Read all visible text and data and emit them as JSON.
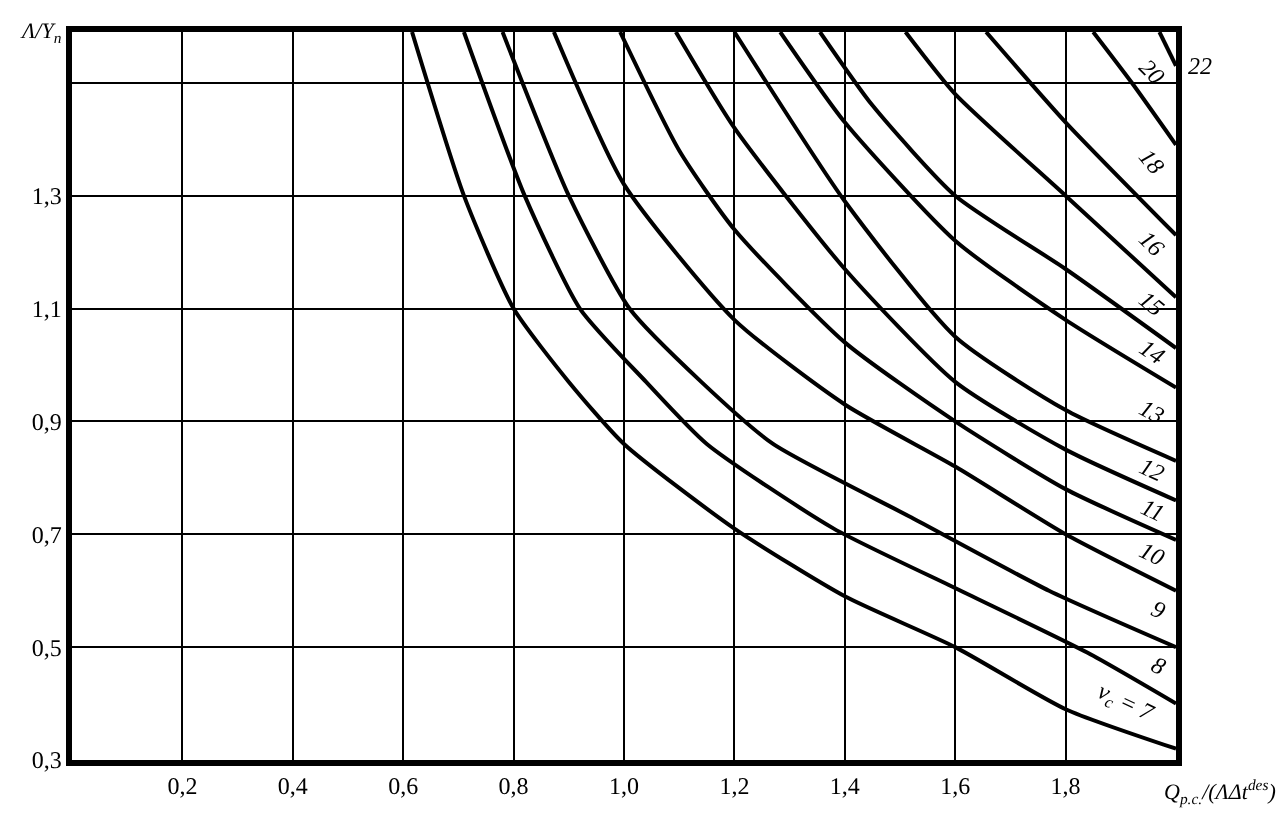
{
  "chart_data": {
    "type": "line",
    "xlabel": "Q$_{p.c.}$/(ΛΔt$^{des}$)",
    "ylabel": "Λ/Y$_{n}$",
    "xlim": [
      0,
      2.0
    ],
    "ylim": [
      0.3,
      1.59
    ],
    "xticks": [
      {
        "value": 0.2,
        "label": "0,2"
      },
      {
        "value": 0.4,
        "label": "0,4"
      },
      {
        "value": 0.6,
        "label": "0,6"
      },
      {
        "value": 0.8,
        "label": "0,8"
      },
      {
        "value": 1.0,
        "label": "1,0"
      },
      {
        "value": 1.2,
        "label": "1,2"
      },
      {
        "value": 1.4,
        "label": "1,4"
      },
      {
        "value": 1.6,
        "label": "1,6"
      },
      {
        "value": 1.8,
        "label": "1,8"
      }
    ],
    "yticks": [
      {
        "value": 0.3,
        "label": "0,3"
      },
      {
        "value": 0.5,
        "label": "0,5"
      },
      {
        "value": 0.7,
        "label": "0,7"
      },
      {
        "value": 0.9,
        "label": "0,9"
      },
      {
        "value": 1.1,
        "label": "1,1"
      },
      {
        "value": 1.3,
        "label": "1,3"
      },
      {
        "value": 1.5,
        "label": null
      }
    ],
    "grid": true,
    "legend": false,
    "line_style": "solid",
    "marker": "none",
    "series": [
      {
        "name": "ν$_{c}$ = 7",
        "color": "#000000",
        "x": [
          0.616,
          0.71,
          0.8,
          0.9,
          1.0,
          1.2,
          1.4,
          1.6,
          1.8,
          2.0
        ],
        "values": [
          1.59,
          1.3,
          1.1,
          0.97,
          0.86,
          0.71,
          0.59,
          0.5,
          0.39,
          0.32
        ]
      },
      {
        "name": "8",
        "color": "#000000",
        "x": [
          0.71,
          0.82,
          0.92,
          1.04,
          1.15,
          1.38,
          1.61,
          1.84,
          2.0
        ],
        "values": [
          1.59,
          1.3,
          1.1,
          0.97,
          0.86,
          0.71,
          0.6,
          0.49,
          0.4
        ]
      },
      {
        "name": "9",
        "color": "#000000",
        "x": [
          0.78,
          0.9,
          1.01,
          1.14,
          1.27,
          1.52,
          1.77,
          2.0
        ],
        "values": [
          1.59,
          1.3,
          1.1,
          0.97,
          0.86,
          0.73,
          0.6,
          0.5
        ]
      },
      {
        "name": "10",
        "color": "#000000",
        "x": [
          0.873,
          1.0,
          1.2,
          1.4,
          1.6,
          1.8,
          2.0
        ],
        "values": [
          1.59,
          1.32,
          1.08,
          0.93,
          0.82,
          0.7,
          0.6
        ]
      },
      {
        "name": "11",
        "color": "#000000",
        "x": [
          0.993,
          1.1,
          1.2,
          1.4,
          1.6,
          1.8,
          2.0
        ],
        "values": [
          1.59,
          1.38,
          1.24,
          1.04,
          0.9,
          0.78,
          0.69
        ]
      },
      {
        "name": "12",
        "color": "#000000",
        "x": [
          1.094,
          1.2,
          1.4,
          1.6,
          1.8,
          2.0
        ],
        "values": [
          1.59,
          1.42,
          1.17,
          0.97,
          0.85,
          0.76
        ]
      },
      {
        "name": "13",
        "color": "#000000",
        "x": [
          1.2,
          1.4,
          1.6,
          1.8,
          2.0
        ],
        "values": [
          1.59,
          1.29,
          1.05,
          0.92,
          0.83
        ]
      },
      {
        "name": "14",
        "color": "#000000",
        "x": [
          1.283,
          1.4,
          1.6,
          1.8,
          2.0
        ],
        "values": [
          1.59,
          1.43,
          1.22,
          1.08,
          0.96
        ]
      },
      {
        "name": "15",
        "color": "#000000",
        "x": [
          1.355,
          1.45,
          1.6,
          1.8,
          2.0
        ],
        "values": [
          1.59,
          1.46,
          1.3,
          1.17,
          1.03
        ]
      },
      {
        "name": "16",
        "color": "#000000",
        "x": [
          1.51,
          1.6,
          1.8,
          2.0
        ],
        "values": [
          1.59,
          1.48,
          1.3,
          1.12
        ]
      },
      {
        "name": "18",
        "color": "#000000",
        "x": [
          1.656,
          1.8,
          2.0
        ],
        "values": [
          1.59,
          1.43,
          1.23
        ]
      },
      {
        "name": "20",
        "color": "#000000",
        "x": [
          1.85,
          1.92,
          2.0
        ],
        "values": [
          1.59,
          1.5,
          1.39
        ]
      },
      {
        "name": "22",
        "color": "#000000",
        "x": [
          1.97,
          2.0
        ],
        "values": [
          1.59,
          1.53
        ]
      }
    ]
  }
}
